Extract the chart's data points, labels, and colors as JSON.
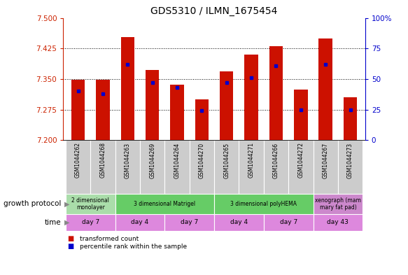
{
  "title": "GDS5310 / ILMN_1675454",
  "samples": [
    "GSM1044262",
    "GSM1044268",
    "GSM1044263",
    "GSM1044269",
    "GSM1044264",
    "GSM1044270",
    "GSM1044265",
    "GSM1044271",
    "GSM1044266",
    "GSM1044272",
    "GSM1044267",
    "GSM1044273"
  ],
  "transformed_counts": [
    7.348,
    7.348,
    7.453,
    7.372,
    7.337,
    7.3,
    7.368,
    7.41,
    7.43,
    7.325,
    7.45,
    7.305
  ],
  "percentile_ranks": [
    40,
    38,
    62,
    47,
    43,
    24,
    47,
    51,
    61,
    25,
    62,
    25
  ],
  "ylim_left": [
    7.2,
    7.5
  ],
  "ylim_right": [
    0,
    100
  ],
  "yticks_left": [
    7.2,
    7.275,
    7.35,
    7.425,
    7.5
  ],
  "yticks_right": [
    0,
    25,
    50,
    75,
    100
  ],
  "bar_color": "#cc1100",
  "marker_color": "#0000cc",
  "growth_protocol_groups": [
    {
      "label": "2 dimensional\nmonolayer",
      "start": 0,
      "end": 2,
      "color": "#aaddaa"
    },
    {
      "label": "3 dimensional Matrigel",
      "start": 2,
      "end": 6,
      "color": "#66cc66"
    },
    {
      "label": "3 dimensional polyHEMA",
      "start": 6,
      "end": 10,
      "color": "#66cc66"
    },
    {
      "label": "xenograph (mam\nmary fat pad)",
      "start": 10,
      "end": 12,
      "color": "#cc88cc"
    }
  ],
  "time_groups": [
    {
      "label": "day 7",
      "start": 0,
      "end": 2
    },
    {
      "label": "day 4",
      "start": 2,
      "end": 4
    },
    {
      "label": "day 7",
      "start": 4,
      "end": 6
    },
    {
      "label": "day 4",
      "start": 6,
      "end": 8
    },
    {
      "label": "day 7",
      "start": 8,
      "end": 10
    },
    {
      "label": "day 43",
      "start": 10,
      "end": 12
    }
  ],
  "time_color": "#dd88dd",
  "sample_bg_color": "#cccccc",
  "ylabel_left_color": "#cc2200",
  "ylabel_right_color": "#0000cc",
  "legend_items": [
    {
      "label": "transformed count",
      "color": "#cc1100"
    },
    {
      "label": "percentile rank within the sample",
      "color": "#0000cc"
    }
  ],
  "row_label_growth": "growth protocol",
  "row_label_time": "time",
  "ybase": 7.2
}
